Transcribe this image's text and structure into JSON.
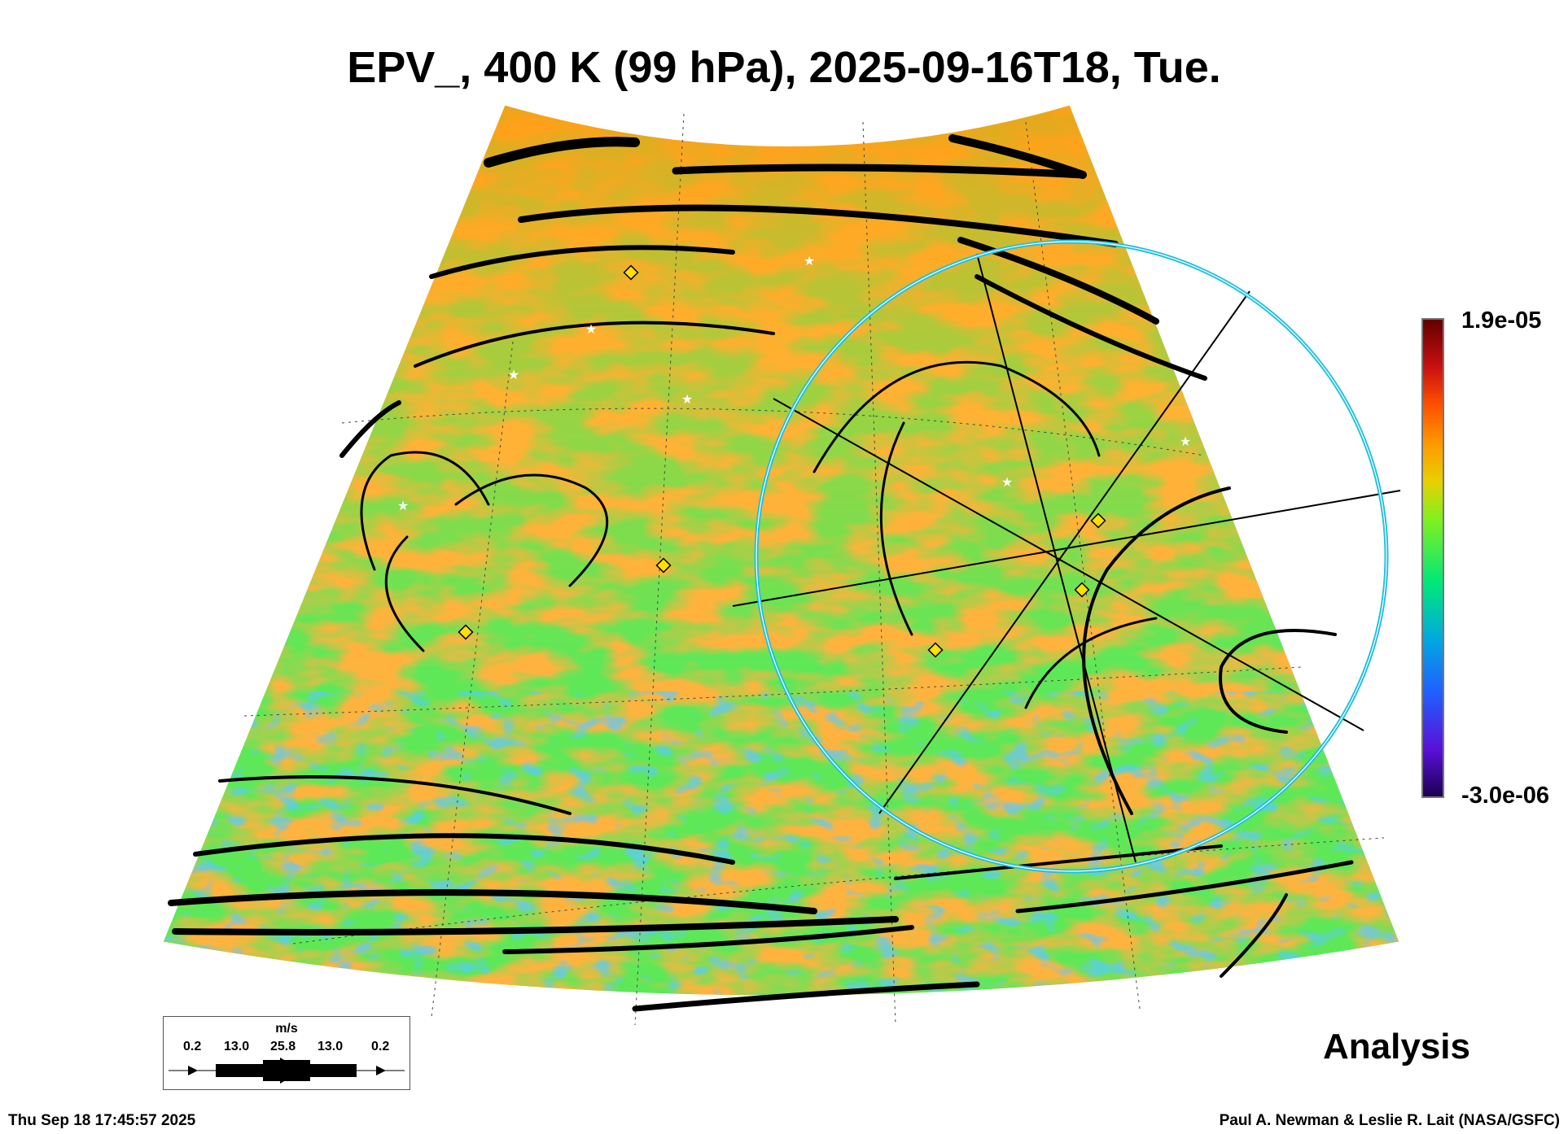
{
  "chart_data": {
    "type": "heatmap",
    "title": "EPV_, 400 K (99 hPa), 2025-09-16T18, Tue.",
    "variable": "EPV_",
    "level": "400 K (99 hPa)",
    "valid_time": "2025-09-16T18, Tue.",
    "colorbar": {
      "min_label": "-3.0e-06",
      "max_label": "1.9e-05",
      "min": -3e-06,
      "max": 1.9e-05,
      "colors": [
        "#1a0050",
        "#5a10d8",
        "#2060ff",
        "#00a8e0",
        "#00e878",
        "#80f020",
        "#e8d000",
        "#ff9800",
        "#ff5000",
        "#c81010",
        "#600000"
      ]
    },
    "wind_legend": {
      "unit": "m/s",
      "values": [
        "0.2",
        "13.0",
        "25.8",
        "13.0",
        "0.2"
      ]
    },
    "product_label": "Analysis",
    "footer_left": "Thu Sep 18 17:45:57 2025",
    "footer_right": "Paul A. Newman & Leslie R. Lait (NASA/GSFC)"
  }
}
